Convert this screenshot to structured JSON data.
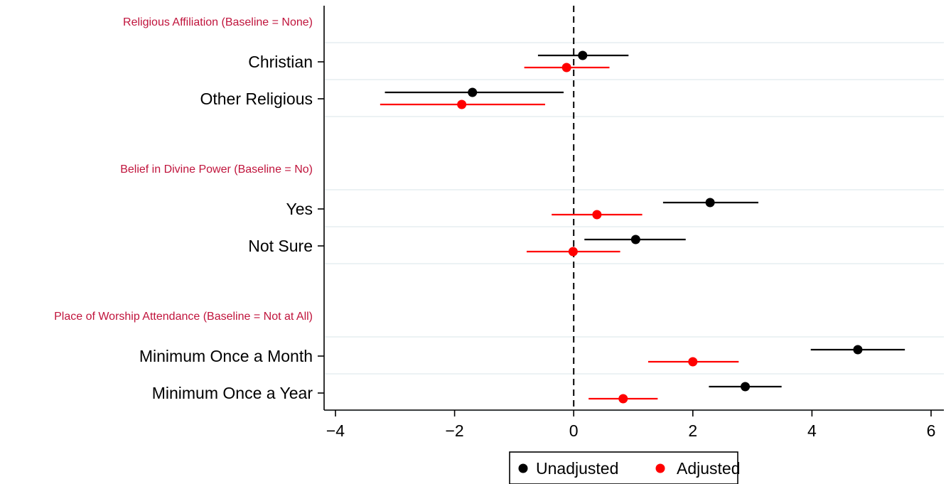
{
  "chart_data": {
    "type": "scatter",
    "subtype": "coefficient-plot",
    "xlim": [
      -4,
      6
    ],
    "xticks": [
      -4,
      -2,
      0,
      2,
      4,
      6
    ],
    "xtick_labels": [
      "−4",
      "−2",
      "0",
      "2",
      "4",
      "6"
    ],
    "reference_line": 0,
    "grid": true,
    "legend_position": "bottom-center",
    "colors": {
      "unadjusted": "#000000",
      "adjusted": "#ff0000",
      "group_label": "#c0143c"
    },
    "series": [
      {
        "key": "unadjusted",
        "name": "Unadjusted"
      },
      {
        "key": "adjusted",
        "name": "Adjusted"
      }
    ],
    "groups": [
      {
        "label": "Religious Affiliation (Baseline = None)",
        "items": [
          {
            "label": "Christian",
            "unadjusted": {
              "est": 0.15,
              "lo": -0.6,
              "hi": 0.92
            },
            "adjusted": {
              "est": -0.12,
              "lo": -0.83,
              "hi": 0.6
            }
          },
          {
            "label": "Other Religious",
            "unadjusted": {
              "est": -1.7,
              "lo": -3.17,
              "hi": -0.17
            },
            "adjusted": {
              "est": -1.88,
              "lo": -3.25,
              "hi": -0.48
            }
          }
        ]
      },
      {
        "label": "Belief in Divine Power (Baseline = No)",
        "items": [
          {
            "label": "Yes",
            "unadjusted": {
              "est": 2.29,
              "lo": 1.5,
              "hi": 3.1
            },
            "adjusted": {
              "est": 0.39,
              "lo": -0.37,
              "hi": 1.15
            }
          },
          {
            "label": "Not Sure",
            "unadjusted": {
              "est": 1.04,
              "lo": 0.18,
              "hi": 1.88
            },
            "adjusted": {
              "est": -0.01,
              "lo": -0.79,
              "hi": 0.78
            }
          }
        ]
      },
      {
        "label": "Place of Worship Attendance (Baseline = Not at All)",
        "items": [
          {
            "label": "Minimum Once a Month",
            "unadjusted": {
              "est": 4.77,
              "lo": 3.98,
              "hi": 5.56
            },
            "adjusted": {
              "est": 2.0,
              "lo": 1.25,
              "hi": 2.77
            }
          },
          {
            "label": "Minimum Once a Year",
            "unadjusted": {
              "est": 2.88,
              "lo": 2.27,
              "hi": 3.49
            },
            "adjusted": {
              "est": 0.83,
              "lo": 0.25,
              "hi": 1.41
            }
          }
        ]
      }
    ]
  }
}
